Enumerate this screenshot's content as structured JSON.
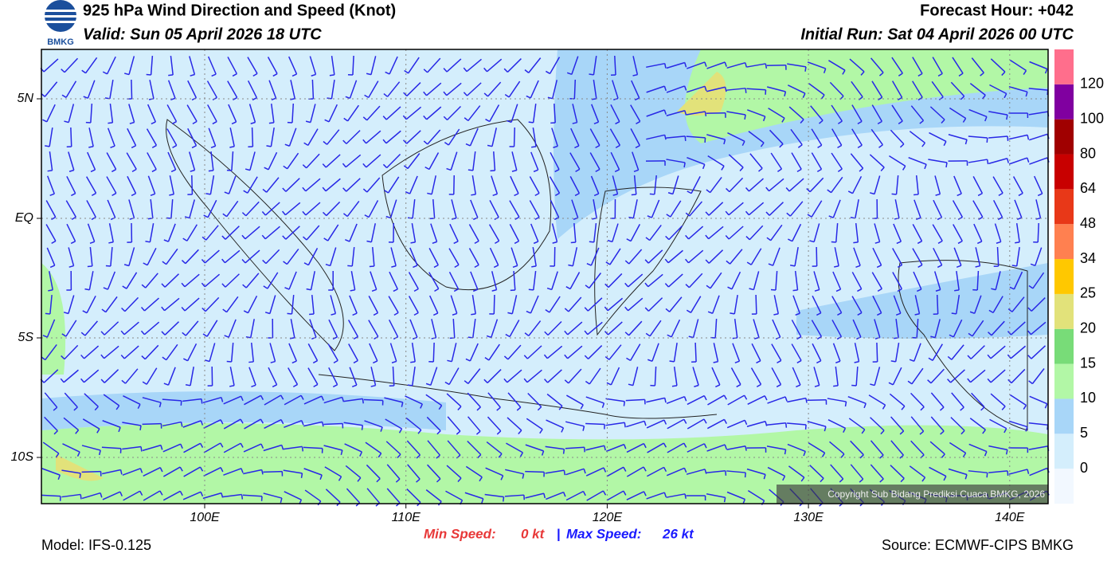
{
  "header": {
    "logo_text": "BMKG",
    "title": "925 hPa Wind Direction and Speed (Knot)",
    "valid": "Valid: Sun 05 April 2026 18 UTC",
    "forecast_hour": "Forecast Hour: +042",
    "initial_run": "Initial Run: Sat 04 April 2026 00 UTC"
  },
  "map": {
    "x_ticks": [
      "100E",
      "110E",
      "120E",
      "130E",
      "140E"
    ],
    "y_ticks": [
      "5N",
      "EQ",
      "5S",
      "10S"
    ],
    "copyright": "Copyright Sub Bidang Prediksi Cuaca BMKG, 2026"
  },
  "colorbar": {
    "labels": [
      "0",
      "5",
      "10",
      "15",
      "20",
      "25",
      "34",
      "48",
      "64",
      "80",
      "100",
      "120"
    ],
    "colors": [
      "#f2f8ff",
      "#d4eefc",
      "#a8d6f8",
      "#b2f7a6",
      "#78dc78",
      "#e2e27a",
      "#ffc800",
      "#ff8050",
      "#e83818",
      "#c80000",
      "#a00000",
      "#8000a0",
      "#ff6e8c"
    ]
  },
  "footer": {
    "model": "Model: IFS-0.125",
    "min_label": "Min Speed:",
    "min_value": "0 kt",
    "separator": "|",
    "max_label": "Max Speed:",
    "max_value": "26 kt",
    "source": "Source: ECMWF-CIPS BMKG"
  }
}
